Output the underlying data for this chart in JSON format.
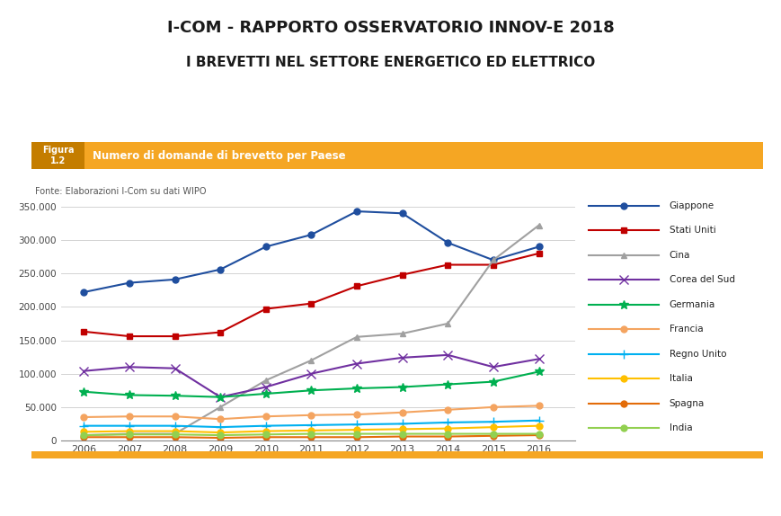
{
  "title1": "I-COM - RAPPORTO OSSERVATORIO INNOV-E 2018",
  "title2": "I BREVETTI NEL SETTORE ENERGETICO ED ELETTRICO",
  "figura_label": "Figura\n1.2",
  "chart_title": "Numero di domande di brevetto per Paese",
  "source": "Fonte: Elaborazioni I-Com su dati WIPO",
  "years": [
    2006,
    2007,
    2008,
    2009,
    2010,
    2011,
    2012,
    2013,
    2014,
    2015,
    2016
  ],
  "series": {
    "Giappone": [
      222000,
      236000,
      241000,
      256000,
      290000,
      308000,
      343000,
      340000,
      296000,
      270000,
      290000
    ],
    "Stati Uniti": [
      163000,
      156000,
      156000,
      162000,
      197000,
      205000,
      231000,
      248000,
      263000,
      263000,
      280000
    ],
    "Cina": [
      8000,
      10000,
      10000,
      50000,
      90000,
      120000,
      155000,
      160000,
      175000,
      270000,
      322000
    ],
    "Corea del Sud": [
      104000,
      110000,
      108000,
      65000,
      80000,
      100000,
      115000,
      124000,
      128000,
      110000,
      122000
    ],
    "Germania": [
      73000,
      68000,
      67000,
      65000,
      70000,
      75000,
      78000,
      80000,
      84000,
      88000,
      103000
    ],
    "Francia": [
      35000,
      36000,
      36000,
      32000,
      36000,
      38000,
      39000,
      42000,
      46000,
      50000,
      52000
    ],
    "Regno Unito": [
      22000,
      22000,
      22000,
      20000,
      22000,
      23000,
      24000,
      25000,
      27000,
      28000,
      30000
    ],
    "Italia": [
      13000,
      14000,
      14000,
      12000,
      14000,
      15000,
      16000,
      17000,
      18000,
      20000,
      22000
    ],
    "Spagna": [
      5000,
      5000,
      5000,
      4000,
      5000,
      5000,
      5000,
      6000,
      6000,
      7000,
      8000
    ],
    "India": [
      8000,
      9000,
      9000,
      8000,
      9000,
      10000,
      10000,
      10000,
      10000,
      10000,
      10000
    ]
  },
  "colors": {
    "Giappone": "#1f4e9e",
    "Stati Uniti": "#c00000",
    "Cina": "#a0a0a0",
    "Corea del Sud": "#7030a0",
    "Germania": "#00b050",
    "Francia": "#f4a460",
    "Regno Unito": "#00b0f0",
    "Italia": "#ffc000",
    "Spagna": "#e36c09",
    "India": "#92d050"
  },
  "markers": {
    "Giappone": "o",
    "Stati Uniti": "s",
    "Cina": "^",
    "Corea del Sud": "x",
    "Germania": "*",
    "Francia": "o",
    "Regno Unito": "+",
    "Italia": "o",
    "Spagna": "o",
    "India": "o"
  },
  "marker_sizes": {
    "Giappone": 5,
    "Stati Uniti": 5,
    "Cina": 5,
    "Corea del Sud": 7,
    "Germania": 7,
    "Francia": 5,
    "Regno Unito": 7,
    "Italia": 5,
    "Spagna": 5,
    "India": 5
  },
  "ylim": [
    0,
    370000
  ],
  "yticks": [
    0,
    50000,
    100000,
    150000,
    200000,
    250000,
    300000,
    350000
  ],
  "ytick_labels": [
    "0",
    "50.000",
    "100.000",
    "150.000",
    "200.000",
    "250.000",
    "300.000",
    "350.000"
  ],
  "header_bg": "#f5a623",
  "header_figura_bg": "#c47d00",
  "bg_color": "#ffffff",
  "grid_color": "#cccccc"
}
